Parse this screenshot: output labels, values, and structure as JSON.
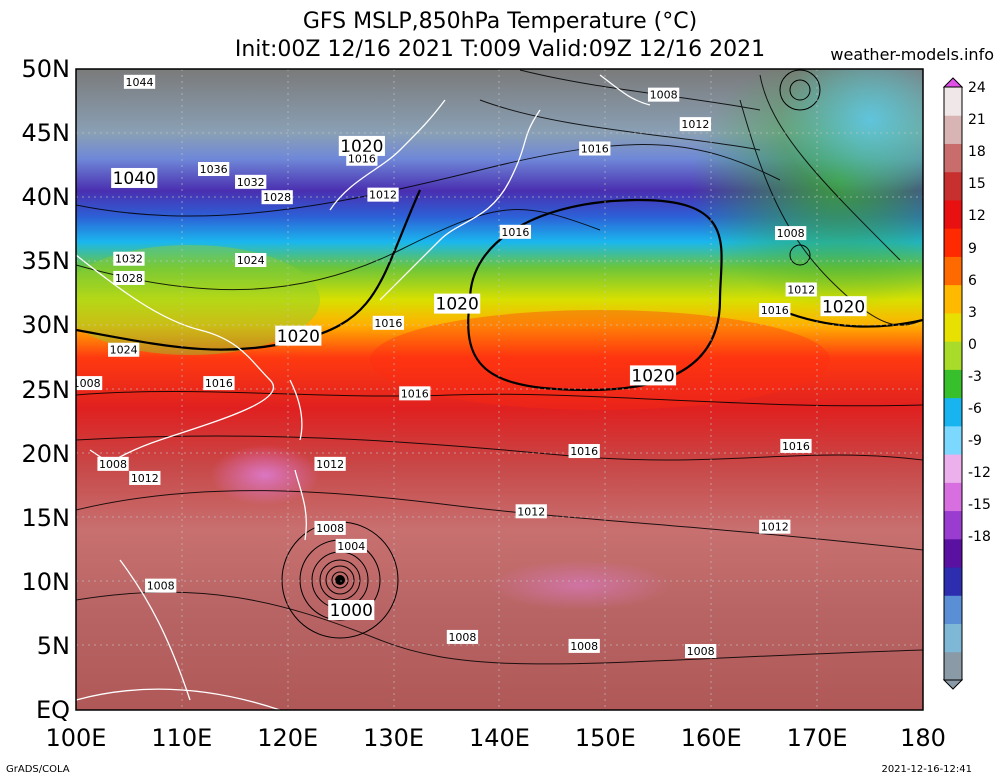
{
  "title": {
    "line1": "GFS MSLP,850hPa Temperature (°C)",
    "line2": "Init:00Z 12/16 2021 T:009 Valid:09Z 12/16 2021",
    "site": "weather-models.info"
  },
  "footer": {
    "left": "GrADS/COLA",
    "right": "2021-12-16-12:41"
  },
  "map": {
    "lat_labels": [
      "50N",
      "45N",
      "40N",
      "35N",
      "30N",
      "25N",
      "20N",
      "15N",
      "10N",
      "5N",
      "EQ"
    ],
    "lon_labels": [
      "100E",
      "110E",
      "120E",
      "130E",
      "140E",
      "150E",
      "160E",
      "170E",
      "180"
    ],
    "lat_values": [
      50,
      45,
      40,
      35,
      30,
      25,
      20,
      15,
      10,
      5,
      0
    ],
    "lon_values": [
      100,
      110,
      120,
      130,
      140,
      150,
      160,
      170,
      180
    ],
    "isobar_labels": [
      {
        "text": "1044",
        "lon": 106,
        "lat": 49,
        "size": "small"
      },
      {
        "text": "1040",
        "lon": 105.5,
        "lat": 41.5,
        "size": "large"
      },
      {
        "text": "1036",
        "lon": 113,
        "lat": 42.2,
        "size": "small"
      },
      {
        "text": "1032",
        "lon": 116.5,
        "lat": 41.2,
        "size": "small"
      },
      {
        "text": "1028",
        "lon": 119,
        "lat": 40,
        "size": "small"
      },
      {
        "text": "1020",
        "lon": 127,
        "lat": 44,
        "size": "large"
      },
      {
        "text": "1016",
        "lon": 127,
        "lat": 43,
        "size": "small"
      },
      {
        "text": "1012",
        "lon": 129,
        "lat": 40.2,
        "size": "small"
      },
      {
        "text": "1016",
        "lon": 141.5,
        "lat": 37.3,
        "size": "small"
      },
      {
        "text": "1016",
        "lon": 149,
        "lat": 43.8,
        "size": "small"
      },
      {
        "text": "1012",
        "lon": 158.5,
        "lat": 45.7,
        "size": "small"
      },
      {
        "text": "1008",
        "lon": 155.5,
        "lat": 48,
        "size": "small"
      },
      {
        "text": "1032",
        "lon": 105,
        "lat": 35.2,
        "size": "small"
      },
      {
        "text": "1024",
        "lon": 116.5,
        "lat": 35.1,
        "size": "small"
      },
      {
        "text": "1028",
        "lon": 105,
        "lat": 33.7,
        "size": "small"
      },
      {
        "text": "1020",
        "lon": 136,
        "lat": 31.7,
        "size": "large"
      },
      {
        "text": "1016",
        "lon": 129.5,
        "lat": 30.2,
        "size": "small"
      },
      {
        "text": "1020",
        "lon": 121,
        "lat": 29.2,
        "size": "large"
      },
      {
        "text": "1024",
        "lon": 104.5,
        "lat": 28.1,
        "size": "small"
      },
      {
        "text": "1016",
        "lon": 113.5,
        "lat": 25.5,
        "size": "small"
      },
      {
        "text": "1008",
        "lon": 101,
        "lat": 25.5,
        "size": "small"
      },
      {
        "text": "1016",
        "lon": 132,
        "lat": 24.7,
        "size": "small"
      },
      {
        "text": "1020",
        "lon": 154.5,
        "lat": 26.1,
        "size": "large"
      },
      {
        "text": "1008",
        "lon": 167.5,
        "lat": 37.2,
        "size": "small"
      },
      {
        "text": "1012",
        "lon": 168.5,
        "lat": 32.8,
        "size": "small"
      },
      {
        "text": "1016",
        "lon": 166,
        "lat": 31.2,
        "size": "small"
      },
      {
        "text": "1020",
        "lon": 172.5,
        "lat": 31.5,
        "size": "large"
      },
      {
        "text": "1016",
        "lon": 148,
        "lat": 20.2,
        "size": "small"
      },
      {
        "text": "1016",
        "lon": 168,
        "lat": 20.6,
        "size": "small"
      },
      {
        "text": "1008",
        "lon": 103.5,
        "lat": 19.2,
        "size": "small"
      },
      {
        "text": "1012",
        "lon": 106.5,
        "lat": 18.1,
        "size": "small"
      },
      {
        "text": "1012",
        "lon": 124,
        "lat": 19.2,
        "size": "small"
      },
      {
        "text": "1012",
        "lon": 143,
        "lat": 15.5,
        "size": "small"
      },
      {
        "text": "1012",
        "lon": 166,
        "lat": 14.3,
        "size": "small"
      },
      {
        "text": "1008",
        "lon": 124,
        "lat": 14.2,
        "size": "small"
      },
      {
        "text": "1004",
        "lon": 126,
        "lat": 12.8,
        "size": "small"
      },
      {
        "text": "1008",
        "lon": 108,
        "lat": 9.7,
        "size": "small"
      },
      {
        "text": "1000",
        "lon": 126,
        "lat": 7.8,
        "size": "large"
      },
      {
        "text": "1008",
        "lon": 136.5,
        "lat": 5.7,
        "size": "small"
      },
      {
        "text": "1008",
        "lon": 148,
        "lat": 5,
        "size": "small"
      },
      {
        "text": "1008",
        "lon": 159,
        "lat": 4.6,
        "size": "small"
      }
    ]
  },
  "colorbar": {
    "labels": [
      "24",
      "21",
      "18",
      "15",
      "12",
      "9",
      "6",
      "3",
      "0",
      "-3",
      "-6",
      "-9",
      "-12",
      "-15",
      "-18"
    ],
    "colors": [
      "#8a9aa6",
      "#7fb7d6",
      "#5a8fd6",
      "#2d2db0",
      "#5a10a0",
      "#9a3cd0",
      "#d86fe0",
      "#ecb0ec",
      "#7cd8ff",
      "#18b4f0",
      "#37c02c",
      "#a9dc2a",
      "#e8e000",
      "#ffba00",
      "#ff6a00",
      "#ff2a00",
      "#e81010",
      "#c83030",
      "#c86c6c",
      "#d8b4b4",
      "#f0e8e8"
    ]
  }
}
